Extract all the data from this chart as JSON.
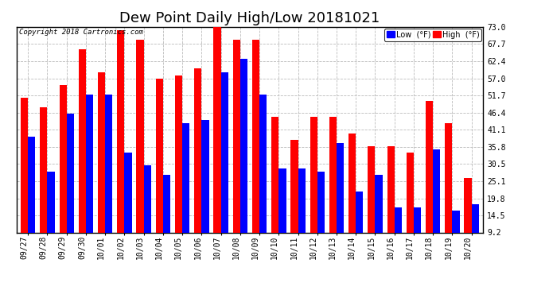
{
  "title": "Dew Point Daily High/Low 20181021",
  "copyright": "Copyright 2018 Cartronics.com",
  "categories": [
    "09/27",
    "09/28",
    "09/29",
    "09/30",
    "10/01",
    "10/02",
    "10/03",
    "10/04",
    "10/05",
    "10/06",
    "10/07",
    "10/08",
    "10/09",
    "10/10",
    "10/11",
    "10/12",
    "10/13",
    "10/14",
    "10/15",
    "10/16",
    "10/17",
    "10/18",
    "10/19",
    "10/20"
  ],
  "low_values": [
    39,
    28,
    46,
    52,
    52,
    34,
    30,
    27,
    43,
    44,
    59,
    63,
    52,
    29,
    29,
    28,
    37,
    22,
    27,
    17,
    17,
    35,
    16,
    18
  ],
  "high_values": [
    51,
    48,
    55,
    66,
    59,
    72,
    69,
    57,
    58,
    60,
    73,
    69,
    69,
    45,
    38,
    45,
    45,
    40,
    36,
    36,
    34,
    50,
    43,
    26
  ],
  "low_color": "#0000ff",
  "high_color": "#ff0000",
  "background_color": "#ffffff",
  "plot_bg_color": "#ffffff",
  "grid_color": "#bbbbbb",
  "yticks": [
    9.2,
    14.5,
    19.8,
    25.1,
    30.5,
    35.8,
    41.1,
    46.4,
    51.7,
    57.0,
    62.4,
    67.7,
    73.0
  ],
  "ylim_min": 9.2,
  "ylim_max": 73.0,
  "title_fontsize": 13,
  "tick_fontsize": 7,
  "bar_width": 0.38
}
